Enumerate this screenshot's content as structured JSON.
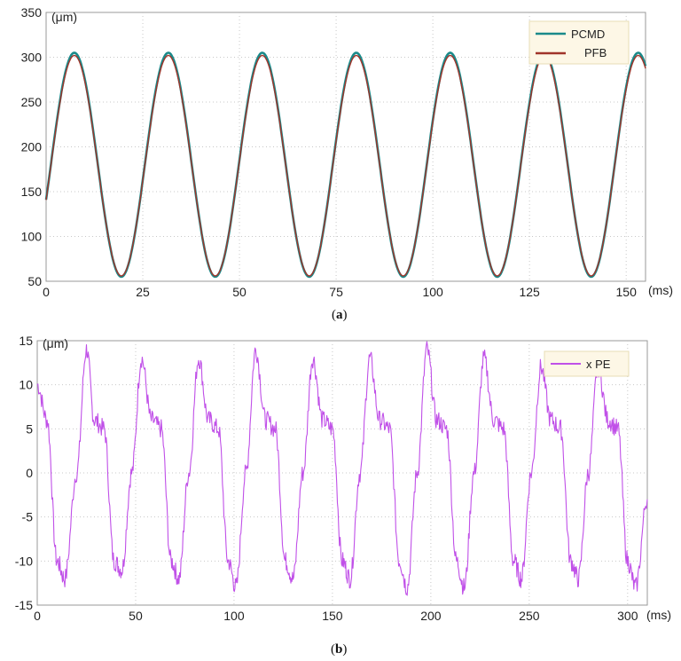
{
  "chart_data": [
    {
      "type": "line",
      "panel_label": "a",
      "xlabel": "(ms)",
      "ylabel": "(μm)",
      "xlim": [
        0,
        155
      ],
      "ylim": [
        50,
        350
      ],
      "xticks": [
        0,
        25,
        50,
        75,
        100,
        125,
        150
      ],
      "yticks": [
        50,
        100,
        150,
        200,
        250,
        300,
        350
      ],
      "grid": true,
      "legend_position": "top-right",
      "series": [
        {
          "name": "PCMD",
          "color": "#1a8a8a",
          "description": "sinusoid, amplitude 125 about 180, period ~24.3 ms",
          "x": [
            0,
            7.3,
            19.4,
            31.5,
            43.6,
            55.8,
            67.9,
            80.0,
            92.2,
            104.3,
            116.4,
            128.6,
            140.7,
            152.8,
            155
          ],
          "y": [
            130,
            305,
            55,
            305,
            55,
            305,
            55,
            305,
            55,
            305,
            55,
            305,
            55,
            305,
            285
          ]
        },
        {
          "name": "PFB",
          "color": "#a0342a",
          "description": "tracks PCMD closely, slightly lower peak",
          "x": [
            0,
            7.3,
            19.4,
            31.5,
            43.6,
            55.8,
            67.9,
            80.0,
            92.2,
            104.3,
            116.4,
            128.6,
            140.7,
            152.8,
            155
          ],
          "y": [
            128,
            302,
            56,
            302,
            56,
            302,
            56,
            302,
            56,
            302,
            56,
            302,
            56,
            302,
            275
          ]
        }
      ]
    },
    {
      "type": "line",
      "panel_label": "b",
      "xlabel": "(ms)",
      "ylabel": "(μm)",
      "xlim": [
        0,
        310
      ],
      "ylim": [
        -15,
        15
      ],
      "xticks": [
        0,
        50,
        100,
        150,
        200,
        250,
        300
      ],
      "yticks": [
        -15,
        -10,
        -5,
        0,
        5,
        10,
        15
      ],
      "grid": true,
      "legend_position": "top-right",
      "series": [
        {
          "name": "x PE",
          "color": "#c050e8",
          "description": "noisy periodic error signal, period ~29 ms, range about -14 to 15",
          "x": [
            0,
            5,
            10,
            14,
            20,
            25,
            29,
            34,
            39,
            43,
            48,
            53,
            58,
            63,
            68,
            72,
            77,
            82,
            87,
            92,
            97,
            101,
            106,
            111,
            116,
            121,
            126,
            130,
            135,
            140,
            145,
            150,
            155,
            159,
            164,
            169,
            174,
            179,
            184,
            188,
            193,
            198,
            203,
            208,
            213,
            217,
            222,
            227,
            232,
            237,
            242,
            246,
            251,
            256,
            261,
            266,
            271,
            275,
            280,
            285,
            290,
            295,
            300,
            304,
            310
          ],
          "y": [
            10,
            6,
            -10,
            -12,
            0,
            14,
            6,
            5,
            -10,
            -11,
            0,
            13,
            6,
            5,
            -10,
            -12,
            0,
            13,
            6,
            5,
            -10,
            -13,
            0,
            14,
            6,
            5,
            -10,
            -12,
            0,
            13,
            6,
            5,
            -10,
            -12,
            0,
            13,
            6,
            5,
            -10,
            -13,
            0,
            14,
            6,
            5,
            -10,
            -13,
            0,
            13,
            6,
            5,
            -10,
            -12,
            0,
            12,
            6,
            5,
            -10,
            -12,
            0,
            12,
            6,
            5,
            -10,
            -13,
            -3
          ]
        }
      ]
    }
  ]
}
